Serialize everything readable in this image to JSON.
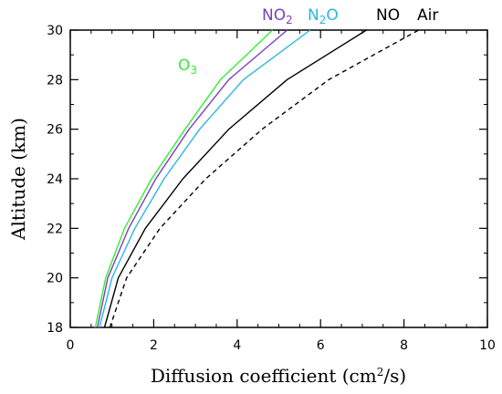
{
  "chart_data": {
    "type": "line",
    "xlabel_parts": [
      "Diffusion coefficient (cm",
      "2",
      "/s)"
    ],
    "ylabel": "Altitude (km)",
    "xlim": [
      0,
      10
    ],
    "ylim": [
      18,
      30
    ],
    "xticks": [
      "0",
      "2",
      "4",
      "6",
      "8",
      "10"
    ],
    "yticks": [
      "18",
      "20",
      "22",
      "24",
      "26",
      "28",
      "30"
    ],
    "grid": false,
    "y": [
      18,
      20,
      22,
      24,
      26,
      28,
      30
    ],
    "series": [
      {
        "name": "O3",
        "label_main": "O",
        "label_sub": "3",
        "color": "#33ee33",
        "dash": "solid",
        "x": [
          0.6,
          0.85,
          1.3,
          1.95,
          2.75,
          3.6,
          4.85
        ]
      },
      {
        "name": "NO2",
        "label_main": "NO",
        "label_sub": "2",
        "color": "#7a3fbf",
        "dash": "solid",
        "x": [
          0.65,
          0.9,
          1.4,
          2.05,
          2.85,
          3.8,
          5.2
        ]
      },
      {
        "name": "N2O",
        "label_main": "N",
        "label_sub": "2",
        "label_tail": "O",
        "color": "#29b6e0",
        "dash": "solid",
        "x": [
          0.7,
          1.0,
          1.55,
          2.25,
          3.1,
          4.15,
          5.75
        ]
      },
      {
        "name": "NO",
        "label_main": "NO",
        "color": "#000000",
        "dash": "solid",
        "x": [
          0.82,
          1.15,
          1.8,
          2.7,
          3.8,
          5.2,
          7.1
        ]
      },
      {
        "name": "Air",
        "label_main": "Air",
        "color": "#000000",
        "dash": "dashed",
        "x": [
          0.95,
          1.35,
          2.15,
          3.25,
          4.6,
          6.2,
          8.35
        ]
      }
    ]
  }
}
